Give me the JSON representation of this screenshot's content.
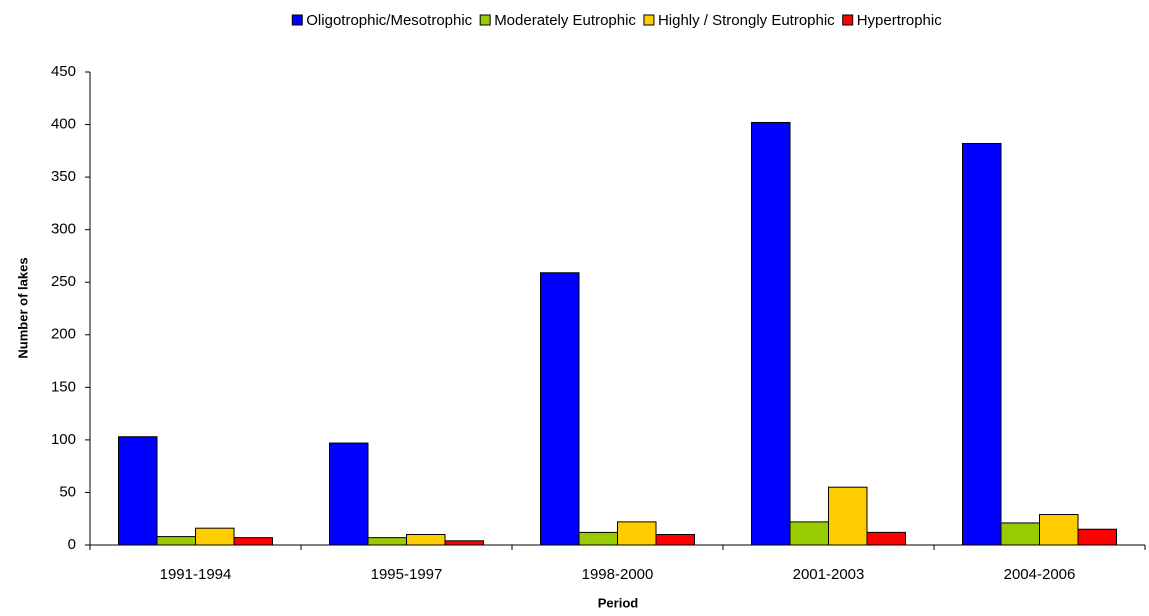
{
  "chart_data": {
    "type": "bar",
    "xlabel": "Period",
    "ylabel": "Number of lakes",
    "categories": [
      "1991-1994",
      "1995-1997",
      "1998-2000",
      "2001-2003",
      "2004-2006"
    ],
    "series": [
      {
        "name": "Oligotrophic/Mesotrophic",
        "color": "#0000ff",
        "values": [
          103,
          97,
          259,
          402,
          382
        ]
      },
      {
        "name": "Moderately  Eutrophic",
        "color": "#99cc00",
        "values": [
          8,
          7,
          12,
          22,
          21
        ]
      },
      {
        "name": "Highly / Strongly  Eutrophic",
        "color": "#ffcc00",
        "values": [
          16,
          10,
          22,
          55,
          29
        ]
      },
      {
        "name": "Hypertrophic",
        "color": "#ff0000",
        "values": [
          7,
          4,
          10,
          12,
          15
        ]
      }
    ],
    "ylim": [
      0,
      450
    ],
    "yticks": [
      0,
      50,
      100,
      150,
      200,
      250,
      300,
      350,
      400,
      450
    ],
    "legend": "top"
  }
}
